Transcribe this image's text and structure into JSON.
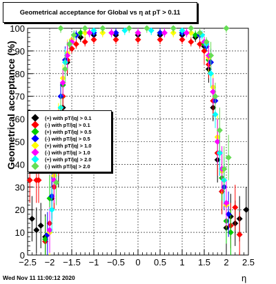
{
  "chart_data": {
    "type": "scatter",
    "title": "Geometrical acceptance for Global vs    η at pT > 0.11",
    "xlabel": "η",
    "ylabel": "Geometrical acceptance (%)",
    "xlim": [
      -2.5,
      2.5
    ],
    "ylim": [
      0,
      100
    ],
    "x_ticks": [
      "−2.5",
      "−2",
      "−1.5",
      "−1",
      "−0.5",
      "0",
      "0.5",
      "1",
      "1.5",
      "2",
      "2.5"
    ],
    "y_ticks": [
      "0",
      "10",
      "20",
      "30",
      "40",
      "50",
      "60",
      "70",
      "80",
      "90",
      "100"
    ],
    "grid": true,
    "legend_position": "left-middle",
    "series": [
      {
        "name": "(+) with pT/|q| > 0.1",
        "color": "#000000",
        "points": [
          [
            -2.4,
            16
          ],
          [
            -2.3,
            11
          ],
          [
            -2.2,
            13
          ],
          [
            -2.1,
            8
          ],
          [
            -1.95,
            25
          ],
          [
            -1.9,
            30
          ],
          [
            -1.8,
            40
          ],
          [
            -1.7,
            65
          ],
          [
            -1.6,
            85
          ],
          [
            -1.5,
            91
          ],
          [
            -1.3,
            96
          ],
          [
            -1.0,
            97
          ],
          [
            -0.5,
            97
          ],
          [
            0,
            97
          ],
          [
            0.5,
            97
          ],
          [
            1.0,
            97
          ],
          [
            1.3,
            96
          ],
          [
            1.5,
            92
          ],
          [
            1.6,
            82
          ],
          [
            1.7,
            65
          ],
          [
            1.8,
            42
          ],
          [
            1.9,
            28
          ],
          [
            2.0,
            12
          ],
          [
            2.1,
            17
          ],
          [
            2.2,
            14
          ],
          [
            2.3,
            16
          ],
          [
            2.45,
            20
          ]
        ]
      },
      {
        "name": "(-) with pT/|q| > 0.1",
        "color": "#ff0000",
        "points": [
          [
            -2.45,
            33
          ],
          [
            -2.3,
            33
          ],
          [
            -2.25,
            33
          ],
          [
            -2.1,
            6
          ],
          [
            -2.0,
            14
          ],
          [
            -1.9,
            30
          ],
          [
            -1.8,
            45
          ],
          [
            -1.7,
            70
          ],
          [
            -1.6,
            86
          ],
          [
            -1.5,
            91
          ],
          [
            -1.4,
            93
          ],
          [
            -1.2,
            94
          ],
          [
            -1.0,
            95
          ],
          [
            -0.5,
            95
          ],
          [
            0,
            95
          ],
          [
            0.5,
            95
          ],
          [
            1.0,
            95
          ],
          [
            1.2,
            94
          ],
          [
            1.4,
            93
          ],
          [
            1.5,
            90
          ],
          [
            1.6,
            84
          ],
          [
            1.7,
            68
          ],
          [
            1.8,
            45
          ],
          [
            1.9,
            28
          ],
          [
            2.1,
            13
          ],
          [
            2.2,
            21
          ],
          [
            2.3,
            9
          ]
        ]
      },
      {
        "name": "(+) with pT/|q| > 0.5",
        "color": "#00cc00",
        "points": [
          [
            -2.1,
            7
          ],
          [
            -2.0,
            25
          ],
          [
            -1.9,
            35
          ],
          [
            -1.8,
            55
          ],
          [
            -1.7,
            75
          ],
          [
            -1.6,
            88
          ],
          [
            -1.5,
            94
          ],
          [
            -1.3,
            98
          ],
          [
            -1.0,
            98
          ],
          [
            -0.5,
            98
          ],
          [
            0,
            98
          ],
          [
            0.5,
            98
          ],
          [
            1.0,
            98
          ],
          [
            1.3,
            97
          ],
          [
            1.5,
            93
          ],
          [
            1.6,
            86
          ],
          [
            1.7,
            72
          ],
          [
            1.8,
            50
          ],
          [
            1.9,
            34
          ],
          [
            2.0,
            15
          ],
          [
            2.1,
            10
          ]
        ]
      },
      {
        "name": "(-) with pT/|q| > 0.5",
        "color": "#0000ff",
        "points": [
          [
            -2.05,
            9
          ],
          [
            -1.95,
            26
          ],
          [
            -1.85,
            45
          ],
          [
            -1.75,
            70
          ],
          [
            -1.65,
            86
          ],
          [
            -1.55,
            93
          ],
          [
            -1.4,
            97
          ],
          [
            -1.0,
            98
          ],
          [
            -0.5,
            98
          ],
          [
            0,
            98
          ],
          [
            0.5,
            98
          ],
          [
            1.0,
            98
          ],
          [
            1.4,
            97
          ],
          [
            1.55,
            92
          ],
          [
            1.65,
            85
          ],
          [
            1.75,
            68
          ],
          [
            1.85,
            45
          ],
          [
            1.95,
            30
          ],
          [
            2.05,
            18
          ]
        ]
      },
      {
        "name": "(+) with pT/|q| > 1.0",
        "color": "#ffff00",
        "points": [
          [
            -2.0,
            10
          ],
          [
            -1.9,
            35
          ],
          [
            -1.8,
            57
          ],
          [
            -1.7,
            78
          ],
          [
            -1.6,
            89
          ],
          [
            -1.5,
            95
          ],
          [
            -1.2,
            98
          ],
          [
            -0.8,
            98
          ],
          [
            0,
            98
          ],
          [
            0.8,
            98
          ],
          [
            1.2,
            98
          ],
          [
            1.5,
            94
          ],
          [
            1.6,
            87
          ],
          [
            1.7,
            74
          ],
          [
            1.8,
            52
          ],
          [
            1.9,
            37
          ],
          [
            2.0,
            22
          ]
        ]
      },
      {
        "name": "(-) with pT/|q| > 1.0",
        "color": "#ff00ff",
        "points": [
          [
            -2.0,
            11
          ],
          [
            -1.9,
            33
          ],
          [
            -1.8,
            54
          ],
          [
            -1.7,
            76
          ],
          [
            -1.6,
            88
          ],
          [
            -1.5,
            94
          ],
          [
            -1.1,
            98
          ],
          [
            -0.6,
            98
          ],
          [
            0,
            98
          ],
          [
            0.6,
            98
          ],
          [
            1.1,
            98
          ],
          [
            1.5,
            94
          ],
          [
            1.6,
            88
          ],
          [
            1.7,
            72
          ],
          [
            1.8,
            50
          ],
          [
            1.9,
            38
          ],
          [
            2.0,
            23
          ]
        ]
      },
      {
        "name": "(+) with pT/|q| > 2.0",
        "color": "#00ffff",
        "points": [
          [
            -1.95,
            20
          ],
          [
            -1.85,
            42
          ],
          [
            -1.75,
            65
          ],
          [
            -1.65,
            85
          ],
          [
            -1.55,
            93
          ],
          [
            -1.45,
            97
          ],
          [
            -1.0,
            99
          ],
          [
            -0.3,
            99
          ],
          [
            0.3,
            99
          ],
          [
            1.0,
            99
          ],
          [
            1.45,
            97
          ],
          [
            1.55,
            93
          ],
          [
            1.65,
            80
          ],
          [
            1.75,
            62
          ],
          [
            1.85,
            45
          ],
          [
            1.95,
            33
          ]
        ]
      },
      {
        "name": "(-) with pT/|q| > 2.0",
        "color": "#66dd55",
        "points": [
          [
            -1.85,
            32
          ],
          [
            -1.75,
            60
          ],
          [
            -1.65,
            82
          ],
          [
            -1.55,
            93
          ],
          [
            -1.45,
            97
          ],
          [
            -1.75,
            100
          ],
          [
            -1.2,
            100
          ],
          [
            -0.8,
            100
          ],
          [
            -0.2,
            100
          ],
          [
            0.2,
            100
          ],
          [
            0.8,
            100
          ],
          [
            1.2,
            100
          ],
          [
            1.4,
            98
          ],
          [
            1.55,
            94
          ],
          [
            1.65,
            88
          ],
          [
            1.75,
            70
          ],
          [
            1.85,
            55
          ],
          [
            1.95,
            38
          ],
          [
            2.05,
            43
          ],
          [
            2.0,
            100
          ]
        ]
      }
    ]
  },
  "footer": "Wed Nov 11 11:00:12 2020"
}
